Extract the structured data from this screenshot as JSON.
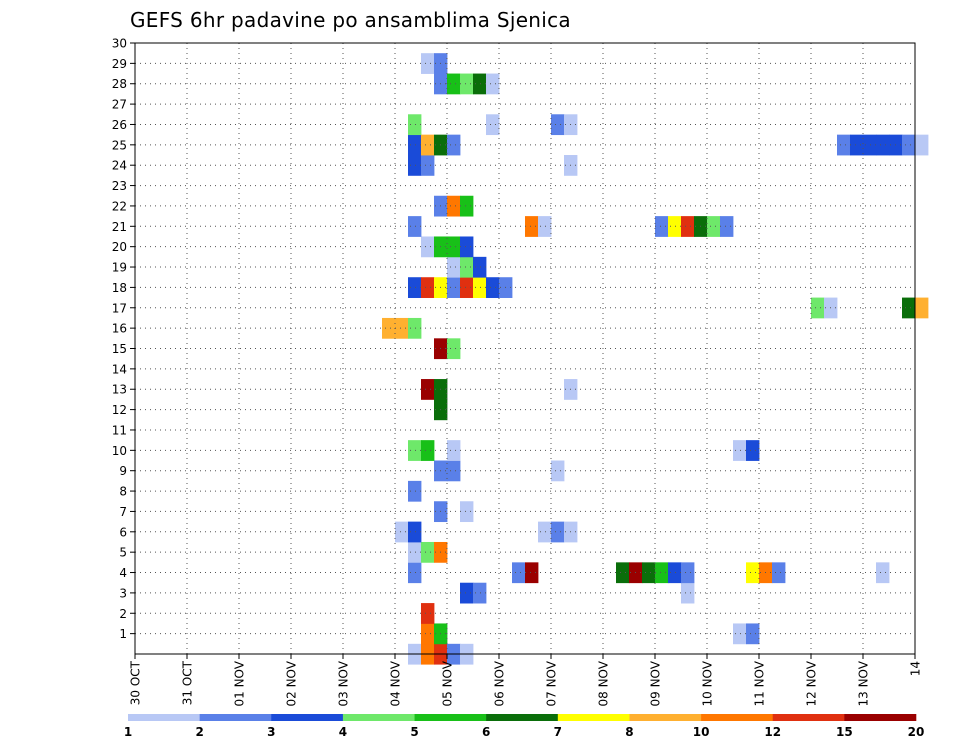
{
  "chart_data": {
    "type": "heatmap",
    "title": "GEFS 6hr padavine po ansamblima Sjenica",
    "xlabel": "",
    "ylabel": "",
    "x_ticks": [
      "30 OCT",
      "31 OCT",
      "01 NOV",
      "02 NOV",
      "03 NOV",
      "04 NOV",
      "05 NOV",
      "06 NOV",
      "07 NOV",
      "08 NOV",
      "09 NOV",
      "10 NOV",
      "11 NOV",
      "12 NOV",
      "13 NOV",
      "14"
    ],
    "x_range_days": [
      0,
      15
    ],
    "y_ticks": [
      1,
      2,
      3,
      4,
      5,
      6,
      7,
      8,
      9,
      10,
      11,
      12,
      13,
      14,
      15,
      16,
      17,
      18,
      19,
      20,
      21,
      22,
      23,
      24,
      25,
      26,
      27,
      28,
      29,
      30
    ],
    "y_range": [
      0,
      30
    ],
    "grid": true,
    "colorbar": {
      "labels": [
        "1",
        "2",
        "3",
        "4",
        "5",
        "6",
        "7",
        "8",
        "10",
        "12",
        "15",
        "20"
      ],
      "colors": [
        "#b8c8f5",
        "#5a80e8",
        "#1a4bd8",
        "#6ee86a",
        "#18c018",
        "#0a6e0a",
        "#ffff00",
        "#ffb030",
        "#ff7700",
        "#e03010",
        "#9a0000"
      ]
    },
    "colors": [
      "#b8c8f5",
      "#5a80e8",
      "#1a4bd8",
      "#6ee86a",
      "#18c018",
      "#0a6e0a",
      "#ffff00",
      "#ffb030",
      "#ff7700",
      "#e03010",
      "#9a0000"
    ],
    "cells": [
      [
        0,
        5.25,
        0
      ],
      [
        0,
        5.5,
        8
      ],
      [
        0,
        5.75,
        9
      ],
      [
        0,
        6.0,
        1
      ],
      [
        0,
        6.25,
        0
      ],
      [
        1,
        5.5,
        8
      ],
      [
        1,
        5.75,
        4
      ],
      [
        1,
        11.5,
        0
      ],
      [
        1,
        11.75,
        1
      ],
      [
        2,
        5.5,
        9
      ],
      [
        3,
        6.25,
        2
      ],
      [
        3,
        6.5,
        1
      ],
      [
        3,
        10.5,
        0
      ],
      [
        4,
        5.25,
        1
      ],
      [
        4,
        7.25,
        1
      ],
      [
        4,
        7.5,
        10
      ],
      [
        4,
        9.25,
        5
      ],
      [
        4,
        9.5,
        10
      ],
      [
        4,
        9.75,
        5
      ],
      [
        4,
        10.0,
        4
      ],
      [
        4,
        10.25,
        2
      ],
      [
        4,
        10.5,
        1
      ],
      [
        4,
        11.75,
        6
      ],
      [
        4,
        12.0,
        8
      ],
      [
        4,
        12.25,
        1
      ],
      [
        4,
        14.25,
        0
      ],
      [
        5,
        5.25,
        0
      ],
      [
        5,
        5.5,
        3
      ],
      [
        5,
        5.75,
        8
      ],
      [
        6,
        5.0,
        0
      ],
      [
        6,
        5.25,
        2
      ],
      [
        6,
        7.75,
        0
      ],
      [
        6,
        8.0,
        1
      ],
      [
        6,
        8.25,
        0
      ],
      [
        7,
        5.75,
        1
      ],
      [
        7,
        6.25,
        0
      ],
      [
        8,
        5.25,
        1
      ],
      [
        9,
        5.75,
        1
      ],
      [
        9,
        6.0,
        1
      ],
      [
        9,
        8.0,
        0
      ],
      [
        10,
        5.25,
        3
      ],
      [
        10,
        5.5,
        4
      ],
      [
        10,
        6.0,
        0
      ],
      [
        10,
        11.5,
        0
      ],
      [
        10,
        11.75,
        2
      ],
      [
        12,
        5.75,
        5
      ],
      [
        13,
        5.5,
        10
      ],
      [
        13,
        5.75,
        5
      ],
      [
        13,
        8.25,
        0
      ],
      [
        15,
        5.75,
        10
      ],
      [
        15,
        6.0,
        3
      ],
      [
        16,
        4.75,
        7
      ],
      [
        16,
        5.0,
        7
      ],
      [
        16,
        5.25,
        3
      ],
      [
        17,
        13.0,
        3
      ],
      [
        17,
        13.25,
        0
      ],
      [
        17,
        14.75,
        5
      ],
      [
        17,
        15.0,
        7
      ],
      [
        18,
        5.25,
        2
      ],
      [
        18,
        5.5,
        9
      ],
      [
        18,
        5.75,
        6
      ],
      [
        18,
        6.0,
        1
      ],
      [
        18,
        6.25,
        9
      ],
      [
        18,
        6.5,
        6
      ],
      [
        18,
        6.75,
        2
      ],
      [
        18,
        7.0,
        1
      ],
      [
        19,
        6.0,
        0
      ],
      [
        19,
        6.25,
        3
      ],
      [
        19,
        6.5,
        2
      ],
      [
        20,
        5.5,
        0
      ],
      [
        20,
        5.75,
        4
      ],
      [
        20,
        6.0,
        4
      ],
      [
        20,
        6.25,
        2
      ],
      [
        21,
        5.25,
        1
      ],
      [
        21,
        7.5,
        8
      ],
      [
        21,
        7.75,
        0
      ],
      [
        21,
        10.0,
        1
      ],
      [
        21,
        10.25,
        6
      ],
      [
        21,
        10.5,
        9
      ],
      [
        21,
        10.75,
        5
      ],
      [
        21,
        11.0,
        3
      ],
      [
        21,
        11.25,
        1
      ],
      [
        22,
        5.75,
        1
      ],
      [
        22,
        6.0,
        8
      ],
      [
        22,
        6.25,
        4
      ],
      [
        24,
        5.25,
        2
      ],
      [
        24,
        5.5,
        1
      ],
      [
        24,
        8.25,
        0
      ],
      [
        25,
        5.25,
        2
      ],
      [
        25,
        5.5,
        7
      ],
      [
        25,
        5.75,
        5
      ],
      [
        25,
        6.0,
        1
      ],
      [
        25,
        13.5,
        1
      ],
      [
        25,
        13.75,
        2
      ],
      [
        25,
        14.0,
        2
      ],
      [
        25,
        14.25,
        2
      ],
      [
        25,
        14.5,
        2
      ],
      [
        25,
        14.75,
        1
      ],
      [
        25,
        15.0,
        0
      ],
      [
        26,
        5.25,
        3
      ],
      [
        26,
        6.75,
        0
      ],
      [
        26,
        8.0,
        1
      ],
      [
        26,
        8.25,
        0
      ],
      [
        28,
        5.75,
        1
      ],
      [
        28,
        6.0,
        4
      ],
      [
        28,
        6.25,
        3
      ],
      [
        28,
        6.5,
        5
      ],
      [
        28,
        6.75,
        0
      ],
      [
        29,
        5.5,
        0
      ],
      [
        29,
        5.75,
        1
      ]
    ]
  }
}
